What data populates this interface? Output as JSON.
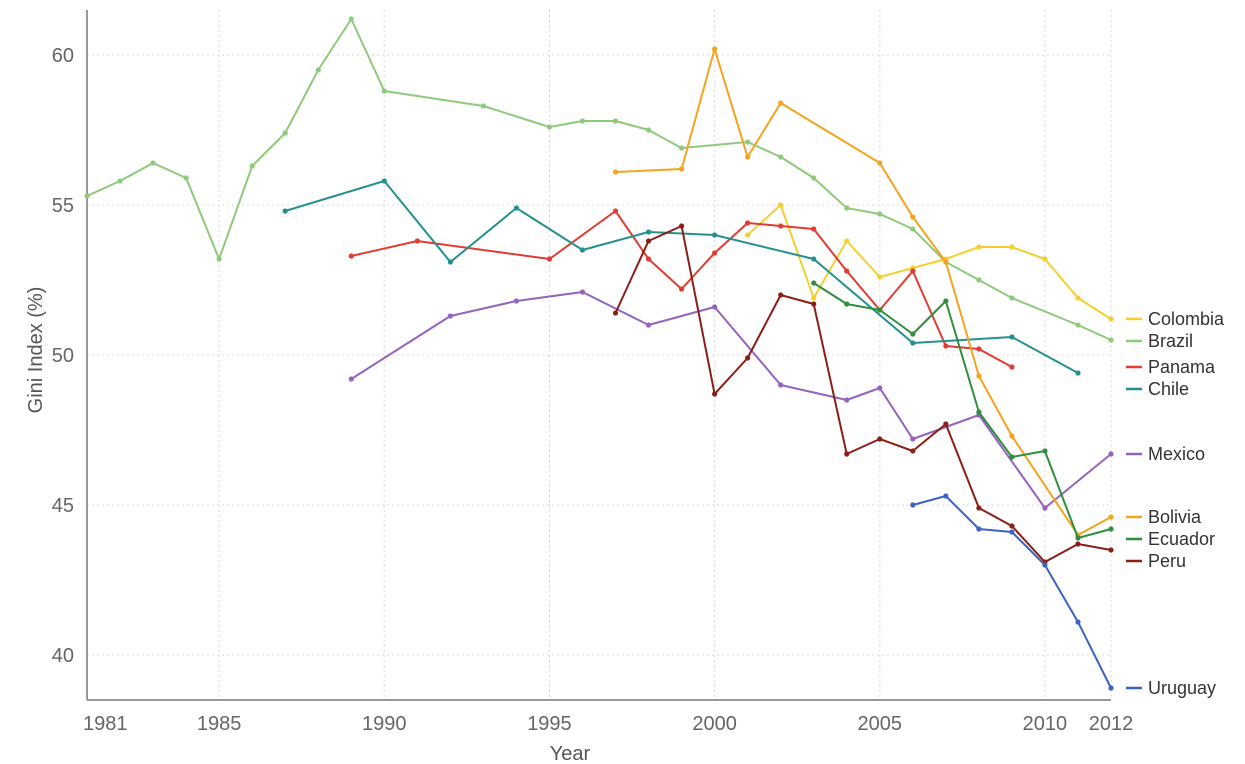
{
  "chart_data": {
    "type": "line",
    "xlabel": "Year",
    "ylabel": "Gini Index (%)",
    "xlim": [
      1981,
      2012
    ],
    "ylim": [
      38.5,
      61.5
    ],
    "x_ticks": [
      1981,
      1985,
      1990,
      1995,
      2000,
      2005,
      2010,
      2012
    ],
    "y_ticks": [
      40,
      45,
      50,
      55,
      60
    ],
    "grid": true,
    "legend_placement": "right, at series end",
    "series": [
      {
        "name": "Colombia",
        "color": "#f5cf2f",
        "points": [
          [
            2001,
            54.0
          ],
          [
            2002,
            55.0
          ],
          [
            2003,
            51.9
          ],
          [
            2004,
            53.8
          ],
          [
            2005,
            52.6
          ],
          [
            2006,
            52.9
          ],
          [
            2007,
            53.2
          ],
          [
            2008,
            53.6
          ],
          [
            2009,
            53.6
          ],
          [
            2010,
            53.2
          ],
          [
            2011,
            51.9
          ],
          [
            2012,
            51.2
          ]
        ]
      },
      {
        "name": "Brazil",
        "color": "#8fc97c",
        "points": [
          [
            1981,
            55.3
          ],
          [
            1982,
            55.8
          ],
          [
            1983,
            56.4
          ],
          [
            1984,
            55.9
          ],
          [
            1985,
            53.2
          ],
          [
            1986,
            56.3
          ],
          [
            1987,
            57.4
          ],
          [
            1988,
            59.5
          ],
          [
            1989,
            61.2
          ],
          [
            1990,
            58.8
          ],
          [
            1993,
            58.3
          ],
          [
            1995,
            57.6
          ],
          [
            1996,
            57.8
          ],
          [
            1997,
            57.8
          ],
          [
            1998,
            57.5
          ],
          [
            1999,
            56.9
          ],
          [
            2001,
            57.1
          ],
          [
            2002,
            56.6
          ],
          [
            2003,
            55.9
          ],
          [
            2004,
            54.9
          ],
          [
            2005,
            54.7
          ],
          [
            2006,
            54.2
          ],
          [
            2007,
            53.1
          ],
          [
            2008,
            52.5
          ],
          [
            2009,
            51.9
          ],
          [
            2011,
            51.0
          ],
          [
            2012,
            50.5
          ]
        ]
      },
      {
        "name": "Panama",
        "color": "#e23b32",
        "points": [
          [
            1989,
            53.3
          ],
          [
            1991,
            53.8
          ],
          [
            1995,
            53.2
          ],
          [
            1997,
            54.8
          ],
          [
            1998,
            53.2
          ],
          [
            1999,
            52.2
          ],
          [
            2000,
            53.4
          ],
          [
            2001,
            54.4
          ],
          [
            2002,
            54.3
          ],
          [
            2003,
            54.2
          ],
          [
            2004,
            52.8
          ],
          [
            2005,
            51.5
          ],
          [
            2006,
            52.8
          ],
          [
            2007,
            50.3
          ],
          [
            2008,
            50.2
          ],
          [
            2009,
            49.6
          ]
        ]
      },
      {
        "name": "Chile",
        "color": "#24908f",
        "points": [
          [
            1987,
            54.8
          ],
          [
            1990,
            55.8
          ],
          [
            1992,
            53.1
          ],
          [
            1994,
            54.9
          ],
          [
            1996,
            53.5
          ],
          [
            1998,
            54.1
          ],
          [
            2000,
            54.0
          ],
          [
            2003,
            53.2
          ],
          [
            2006,
            50.4
          ],
          [
            2009,
            50.6
          ],
          [
            2011,
            49.4
          ]
        ]
      },
      {
        "name": "Mexico",
        "color": "#9363bd",
        "points": [
          [
            1989,
            49.2
          ],
          [
            1992,
            51.3
          ],
          [
            1994,
            51.8
          ],
          [
            1996,
            52.1
          ],
          [
            1998,
            51.0
          ],
          [
            2000,
            51.6
          ],
          [
            2002,
            49.0
          ],
          [
            2004,
            48.5
          ],
          [
            2005,
            48.9
          ],
          [
            2006,
            47.2
          ],
          [
            2008,
            48.0
          ],
          [
            2010,
            44.9
          ],
          [
            2012,
            46.7
          ]
        ]
      },
      {
        "name": "Bolivia",
        "color": "#f5a31f",
        "points": [
          [
            1997,
            56.1
          ],
          [
            1999,
            56.2
          ],
          [
            2000,
            60.2
          ],
          [
            2001,
            56.6
          ],
          [
            2002,
            58.4
          ],
          [
            2005,
            56.4
          ],
          [
            2006,
            54.6
          ],
          [
            2007,
            53.1
          ],
          [
            2008,
            49.3
          ],
          [
            2009,
            47.3
          ],
          [
            2011,
            44.0
          ],
          [
            2012,
            44.6
          ]
        ]
      },
      {
        "name": "Ecuador",
        "color": "#2f8f3c",
        "points": [
          [
            2003,
            52.4
          ],
          [
            2004,
            51.7
          ],
          [
            2005,
            51.5
          ],
          [
            2006,
            50.7
          ],
          [
            2007,
            51.8
          ],
          [
            2008,
            48.1
          ],
          [
            2009,
            46.6
          ],
          [
            2010,
            46.8
          ],
          [
            2011,
            43.9
          ],
          [
            2012,
            44.2
          ]
        ]
      },
      {
        "name": "Peru",
        "color": "#8a1f16",
        "points": [
          [
            1997,
            51.4
          ],
          [
            1998,
            53.8
          ],
          [
            1999,
            54.3
          ],
          [
            2000,
            48.7
          ],
          [
            2001,
            49.9
          ],
          [
            2002,
            52.0
          ],
          [
            2003,
            51.7
          ],
          [
            2004,
            46.7
          ],
          [
            2005,
            47.2
          ],
          [
            2006,
            46.8
          ],
          [
            2007,
            47.7
          ],
          [
            2008,
            44.9
          ],
          [
            2009,
            44.3
          ],
          [
            2010,
            43.1
          ],
          [
            2011,
            43.7
          ],
          [
            2012,
            43.5
          ]
        ]
      },
      {
        "name": "Uruguay",
        "color": "#3a63c2",
        "points": [
          [
            2006,
            45.0
          ],
          [
            2007,
            45.3
          ],
          [
            2008,
            44.2
          ],
          [
            2009,
            44.1
          ],
          [
            2010,
            43.0
          ],
          [
            2011,
            41.1
          ],
          [
            2012,
            38.9
          ]
        ]
      }
    ],
    "legend_order": [
      "Colombia",
      "Brazil",
      "Panama",
      "Chile",
      "Mexico",
      "Bolivia",
      "Ecuador",
      "Peru",
      "Uruguay"
    ]
  }
}
